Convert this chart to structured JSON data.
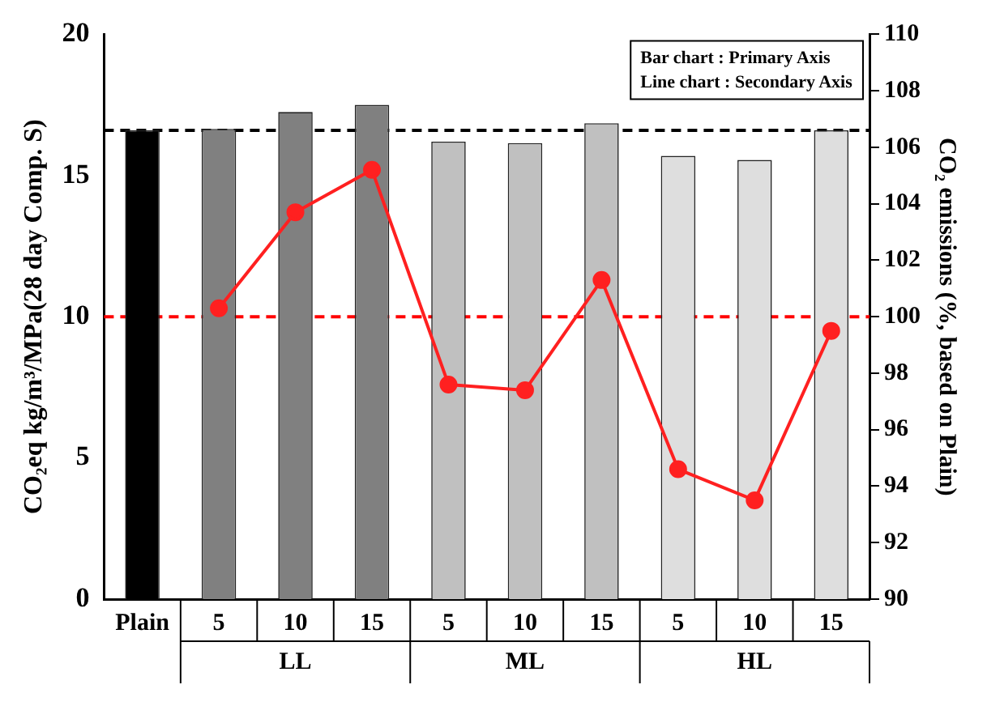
{
  "chart_data": {
    "type": "bar",
    "categories": [
      "Plain",
      "5",
      "10",
      "15",
      "5",
      "10",
      "15",
      "5",
      "10",
      "15"
    ],
    "series": [
      {
        "colors": [
          "#000000",
          "#808080",
          "#808080",
          "#808080",
          "#c0c0c0",
          "#c0c0c0",
          "#c0c0c0",
          "#dedede",
          "#dedede",
          "#dedede"
        ],
        "values": [
          16.6,
          16.65,
          17.25,
          17.5,
          16.2,
          16.15,
          16.85,
          15.7,
          15.55,
          16.6
        ]
      },
      {
        "type": "line",
        "axis": "y2",
        "color": "#ff2020",
        "marker": "circle",
        "values": [
          null,
          100.3,
          103.7,
          105.2,
          97.6,
          97.4,
          101.3,
          94.6,
          93.5,
          99.5
        ]
      }
    ],
    "ylabel": "CO₂eq kg/m³/MPa(28 day Comp. S)",
    "y2label": "CO₂ emissions (%, based on Plain)",
    "ylim": [
      0,
      20
    ],
    "yticks": [
      0,
      5,
      10,
      15,
      20
    ],
    "y2lim": [
      90,
      110
    ],
    "y2ticks": [
      90,
      92,
      94,
      96,
      98,
      100,
      102,
      104,
      106,
      108,
      110
    ],
    "ref_lines": [
      {
        "axis": "y",
        "value": 16.6,
        "color": "#000000",
        "line_style": "dashed"
      },
      {
        "axis": "y2",
        "value": 100,
        "color": "#ff0000",
        "line_style": "dashed"
      }
    ],
    "annotations": [
      "Bar chart : Primary Axis",
      "Line chart : Secondary Axis",
      "LL",
      "ML",
      "HL"
    ],
    "grid": false,
    "legend": false
  }
}
